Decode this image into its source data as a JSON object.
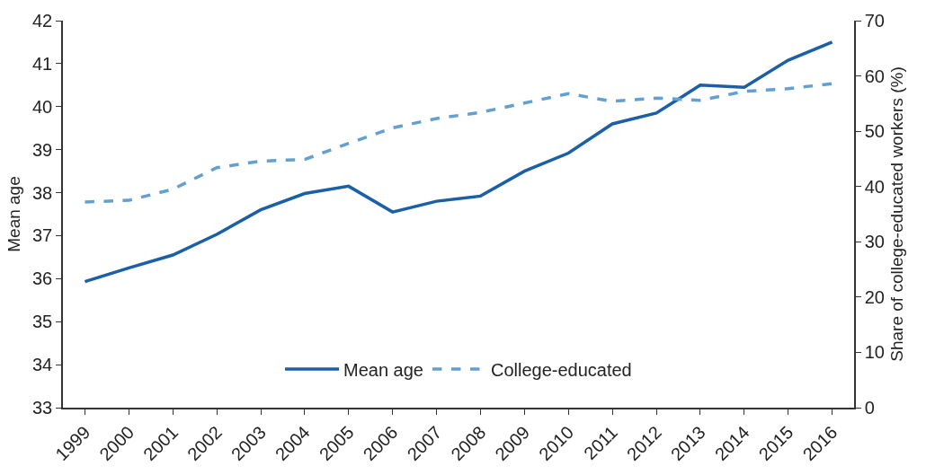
{
  "chart_data": {
    "type": "line",
    "ylabel": "Mean age",
    "y2label": "Share of college-educated workers (%)",
    "categories": [
      "1999",
      "2000",
      "2001",
      "2002",
      "2003",
      "2004",
      "2005",
      "2006",
      "2007",
      "2008",
      "2009",
      "2010",
      "2011",
      "2012",
      "2013",
      "2014",
      "2015",
      "2016"
    ],
    "series": [
      {
        "name": "Mean age",
        "color": "#1a5fa8",
        "line_style": "solid",
        "values": [
          35.93,
          36.25,
          36.55,
          37.03,
          37.6,
          37.98,
          38.15,
          37.55,
          37.8,
          37.92,
          38.5,
          38.92,
          39.6,
          39.85,
          40.5,
          40.45,
          41.08,
          41.5
        ]
      },
      {
        "name": "College-educated",
        "color": "#629fd2",
        "line_style": "dashed",
        "axis": "y2",
        "values": [
          37.2,
          37.5,
          39.5,
          43.4,
          44.6,
          44.9,
          47.8,
          50.6,
          52.3,
          53.4,
          55.1,
          56.8,
          55.4,
          56.0,
          55.6,
          57.2,
          57.7,
          58.6
        ]
      }
    ],
    "ylim": [
      33,
      42
    ],
    "yticks": [
      33,
      34,
      35,
      36,
      37,
      38,
      39,
      40,
      41,
      42
    ],
    "y2lim": [
      0,
      70
    ],
    "y2ticks": [
      0,
      10,
      20,
      30,
      40,
      50,
      60,
      70
    ],
    "legend": "bottom",
    "marker": "none"
  }
}
